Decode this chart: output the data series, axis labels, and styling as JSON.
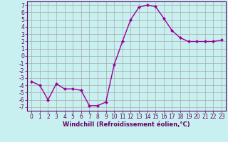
{
  "xlabel": "Windchill (Refroidissement éolien,°C)",
  "x": [
    0,
    1,
    2,
    3,
    4,
    5,
    6,
    7,
    8,
    9,
    10,
    11,
    12,
    13,
    14,
    15,
    16,
    17,
    18,
    19,
    20,
    21,
    22,
    23
  ],
  "y": [
    -3.5,
    -4.0,
    -6.0,
    -3.8,
    -4.5,
    -4.5,
    -4.7,
    -6.8,
    -6.8,
    -6.3,
    -1.2,
    2.0,
    5.0,
    6.7,
    7.0,
    6.8,
    5.2,
    3.5,
    2.5,
    2.0,
    2.0,
    2.0,
    2.0,
    2.2
  ],
  "line_color": "#990099",
  "marker": "D",
  "marker_size": 2.2,
  "bg_color": "#c8f0f0",
  "grid_color": "#aaaaaa",
  "xlim": [
    -0.5,
    23.5
  ],
  "ylim": [
    -7.5,
    7.5
  ],
  "yticks": [
    -7,
    -6,
    -5,
    -4,
    -3,
    -2,
    -1,
    0,
    1,
    2,
    3,
    4,
    5,
    6,
    7
  ],
  "xticks": [
    0,
    1,
    2,
    3,
    4,
    5,
    6,
    7,
    8,
    9,
    10,
    11,
    12,
    13,
    14,
    15,
    16,
    17,
    18,
    19,
    20,
    21,
    22,
    23
  ],
  "tick_color": "#660066",
  "label_color": "#660066",
  "spine_color": "#660066",
  "font_size": 5.5,
  "xlabel_fontsize": 6.0,
  "line_width": 1.0
}
